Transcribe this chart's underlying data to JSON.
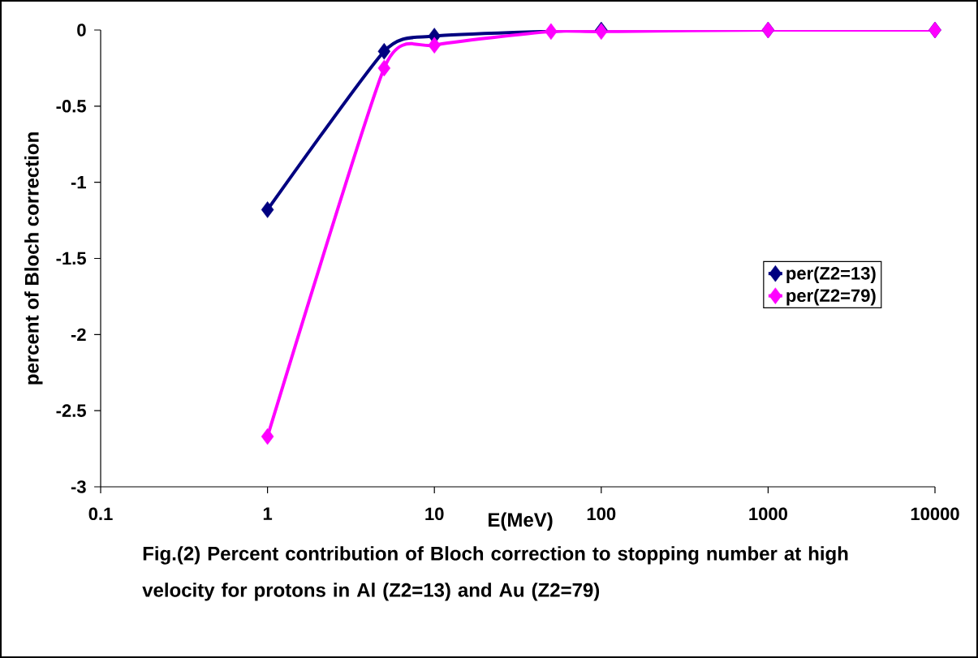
{
  "chart_data": {
    "type": "line",
    "title": "Fig.(2) Percent contribution of Bloch correction to stopping number at high velocity for protons in Al (Z2=13) and Au (Z2=79)",
    "xlabel": "E(MeV)",
    "ylabel": "percent of Bloch correction",
    "x": [
      1,
      5,
      10,
      50,
      100,
      1000,
      10000
    ],
    "series": [
      {
        "name": "per(Z2=13)",
        "color": "#000080",
        "values": [
          -1.18,
          -0.14,
          -0.04,
          null,
          0,
          0,
          0
        ]
      },
      {
        "name": "per(Z2=79)",
        "color": "#ff00ff",
        "values": [
          -2.67,
          -0.25,
          -0.1,
          -0.01,
          -0.01,
          0,
          0
        ]
      }
    ],
    "log": "x",
    "xlim": [
      0.1,
      10000
    ],
    "xticks": [
      0.1,
      1,
      10,
      100,
      1000,
      10000
    ],
    "ylim": [
      -3,
      0
    ],
    "yticks": [
      -3,
      -2.5,
      -2,
      -1.5,
      -1,
      -0.5,
      0
    ],
    "marker": "diamond",
    "line_style": "solid",
    "legend": "right",
    "grid": false
  }
}
